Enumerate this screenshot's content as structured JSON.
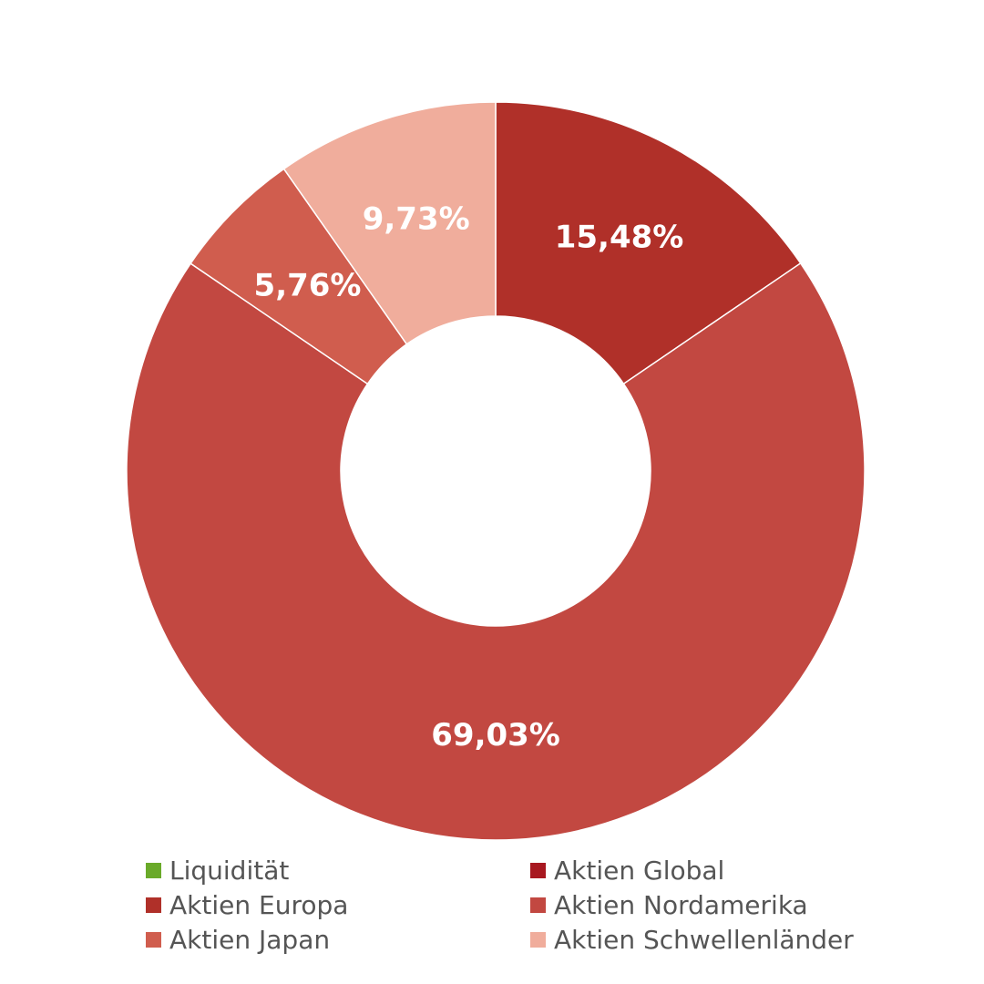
{
  "chart_data": {
    "type": "pie",
    "variant": "donut",
    "title": "",
    "slices": [
      {
        "name": "Aktien Global",
        "value": 15.48,
        "label": "15,48%",
        "color": "#b03029"
      },
      {
        "name": "Aktien Europa",
        "value": 69.03,
        "label": "69,03%",
        "color": "#c24841"
      },
      {
        "name": "Aktien Japan",
        "value": 5.76,
        "label": "5,76%",
        "color": "#d05d4e"
      },
      {
        "name": "Aktien Schwellenländer",
        "value": 9.73,
        "label": "9,73%",
        "color": "#f0ad9c"
      }
    ],
    "legend": {
      "placement": "bottom",
      "items": [
        {
          "name": "Liquidität",
          "color": "#6aaa2a"
        },
        {
          "name": "Aktien Global",
          "color": "#a81820"
        },
        {
          "name": "Aktien Europa",
          "color": "#b03029"
        },
        {
          "name": "Aktien Nordamerika",
          "color": "#c24841"
        },
        {
          "name": "Aktien Japan",
          "color": "#d05d4e"
        },
        {
          "name": "Aktien Schwellenländer",
          "color": "#f0ad9c"
        }
      ]
    }
  }
}
